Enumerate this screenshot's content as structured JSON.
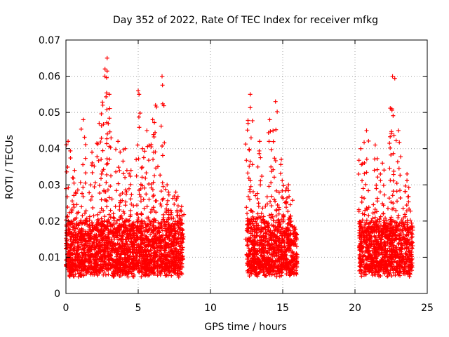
{
  "chart_data": {
    "type": "scatter",
    "title": "Day 352 of 2022, Rate Of TEC Index for receiver mfkg",
    "xlabel": "GPS time / hours",
    "ylabel": "ROTI / TECUs",
    "xlim": [
      0,
      25
    ],
    "ylim": [
      0,
      0.07
    ],
    "grid": true,
    "marker": "+",
    "series_color": "#ff0000",
    "x_ticks": [
      "0",
      "5",
      "10",
      "15",
      "20",
      "25"
    ],
    "y_ticks": [
      "0",
      "0.01",
      "0.02",
      "0.03",
      "0.04",
      "0.05",
      "0.06",
      "0.07"
    ],
    "observation_windows_hours": [
      [
        0.0,
        8.1
      ],
      [
        12.5,
        16.0
      ],
      [
        20.3,
        24.0
      ]
    ],
    "baseline_range": [
      0.006,
      0.02
    ],
    "peaks": [
      {
        "x": 0.15,
        "y": 0.042
      },
      {
        "x": 0.6,
        "y": 0.034
      },
      {
        "x": 1.2,
        "y": 0.048
      },
      {
        "x": 1.8,
        "y": 0.039
      },
      {
        "x": 2.3,
        "y": 0.047
      },
      {
        "x": 2.55,
        "y": 0.052
      },
      {
        "x": 2.7,
        "y": 0.062
      },
      {
        "x": 2.85,
        "y": 0.065
      },
      {
        "x": 3.0,
        "y": 0.055
      },
      {
        "x": 3.6,
        "y": 0.042
      },
      {
        "x": 4.1,
        "y": 0.04
      },
      {
        "x": 4.5,
        "y": 0.034
      },
      {
        "x": 5.0,
        "y": 0.056
      },
      {
        "x": 5.3,
        "y": 0.04
      },
      {
        "x": 5.6,
        "y": 0.045
      },
      {
        "x": 6.0,
        "y": 0.048
      },
      {
        "x": 6.2,
        "y": 0.052
      },
      {
        "x": 6.65,
        "y": 0.06
      },
      {
        "x": 7.0,
        "y": 0.03
      },
      {
        "x": 7.6,
        "y": 0.028
      },
      {
        "x": 8.0,
        "y": 0.024
      },
      {
        "x": 12.6,
        "y": 0.047
      },
      {
        "x": 12.75,
        "y": 0.055
      },
      {
        "x": 13.4,
        "y": 0.042
      },
      {
        "x": 14.1,
        "y": 0.048
      },
      {
        "x": 14.5,
        "y": 0.053
      },
      {
        "x": 14.9,
        "y": 0.037
      },
      {
        "x": 15.4,
        "y": 0.03
      },
      {
        "x": 20.4,
        "y": 0.04
      },
      {
        "x": 20.8,
        "y": 0.045
      },
      {
        "x": 21.4,
        "y": 0.041
      },
      {
        "x": 21.9,
        "y": 0.036
      },
      {
        "x": 22.55,
        "y": 0.051
      },
      {
        "x": 22.6,
        "y": 0.06
      },
      {
        "x": 23.0,
        "y": 0.045
      },
      {
        "x": 23.6,
        "y": 0.033
      }
    ]
  }
}
